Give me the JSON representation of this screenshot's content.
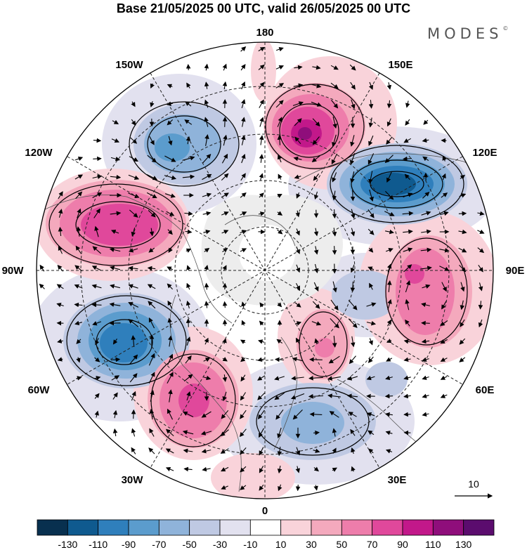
{
  "title": "Base 21/05/2025 00 UTC, valid 26/05/2025 00 UTC",
  "brand": "MODES",
  "brand_mark": "©",
  "longitude_labels": {
    "top": "180",
    "top_left": "150W",
    "top_right": "150E",
    "upper_left": "120W",
    "upper_right": "120E",
    "left": "90W",
    "right": "90E",
    "lower_left": "60W",
    "lower_right": "60E",
    "bottom_left": "30W",
    "bottom_right": "30E",
    "bottom": "0"
  },
  "vector_reference": {
    "value": "10"
  },
  "colorbar": {
    "colors": [
      "#08304f",
      "#0f5a8f",
      "#2f7fbc",
      "#5b9ccd",
      "#8fb3da",
      "#bfc9e3",
      "#e2e1ef",
      "#ffffff",
      "#f9d3da",
      "#f4a9bd",
      "#ee7dab",
      "#e0489b",
      "#c2188a",
      "#8f0e7b",
      "#5b0c6e"
    ],
    "ticks": [
      "-130",
      "-110",
      "-90",
      "-70",
      "-50",
      "-30",
      "-10",
      "10",
      "30",
      "50",
      "70",
      "90",
      "110",
      "130"
    ]
  },
  "anomaly_centers": [
    {
      "lon_label": "150W sector",
      "sign": "negative",
      "level": "-50"
    },
    {
      "lon_label": "160E sector",
      "sign": "positive",
      "level": "110"
    },
    {
      "lon_label": "120E sector",
      "sign": "negative",
      "level": "-110"
    },
    {
      "lon_label": "120W sector",
      "sign": "positive",
      "level": "90"
    },
    {
      "lon_label": "90E sector",
      "sign": "positive",
      "level": "70"
    },
    {
      "lon_label": "60W sector",
      "sign": "negative",
      "level": "-90"
    },
    {
      "lon_label": "30W sector",
      "sign": "positive",
      "level": "90"
    },
    {
      "lon_label": "60E sector",
      "sign": "positive",
      "level": "50"
    },
    {
      "lon_label": "30E sector",
      "sign": "negative",
      "level": "-50"
    }
  ]
}
